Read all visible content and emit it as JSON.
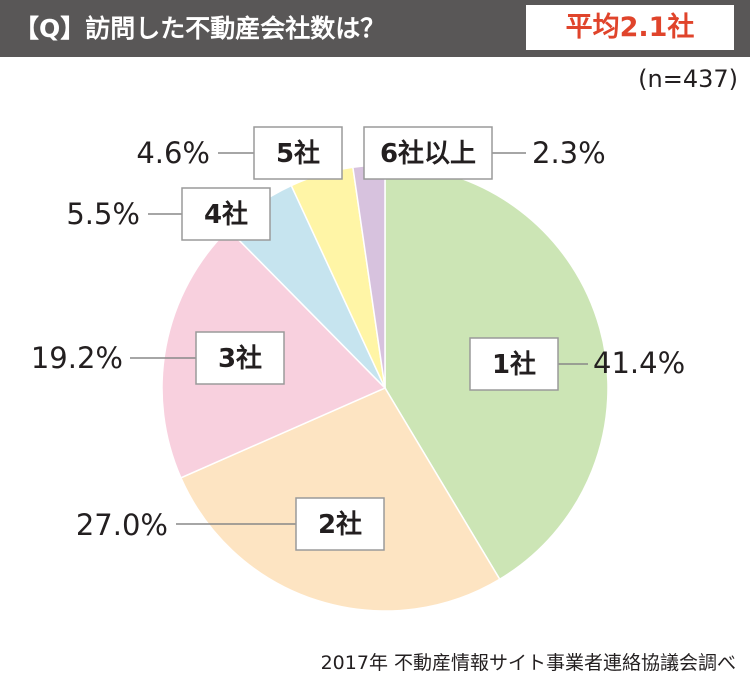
{
  "header": {
    "title": "【Q】訪問した不動産会社数は？",
    "average": "平均2.1社"
  },
  "sample_size": "(n=437)",
  "source": "2017年 不動産情報サイト事業者連絡協議会調べ",
  "chart_data": {
    "type": "pie",
    "start": "12 o'clock, clockwise",
    "slices": [
      {
        "label": "1社",
        "value": 41.4,
        "pct_label": "41.4%",
        "color": "#cce5b5"
      },
      {
        "label": "2社",
        "value": 27.0,
        "pct_label": "27.0%",
        "color": "#fde4c2"
      },
      {
        "label": "3社",
        "value": 19.2,
        "pct_label": "19.2%",
        "color": "#f8d0de"
      },
      {
        "label": "4社",
        "value": 5.5,
        "pct_label": "5.5%",
        "color": "#c6e4ef"
      },
      {
        "label": "5社",
        "value": 4.6,
        "pct_label": "4.6%",
        "color": "#fff5a6"
      },
      {
        "label": "6社以上",
        "value": 2.3,
        "pct_label": "2.3%",
        "color": "#d7c2de"
      }
    ]
  }
}
